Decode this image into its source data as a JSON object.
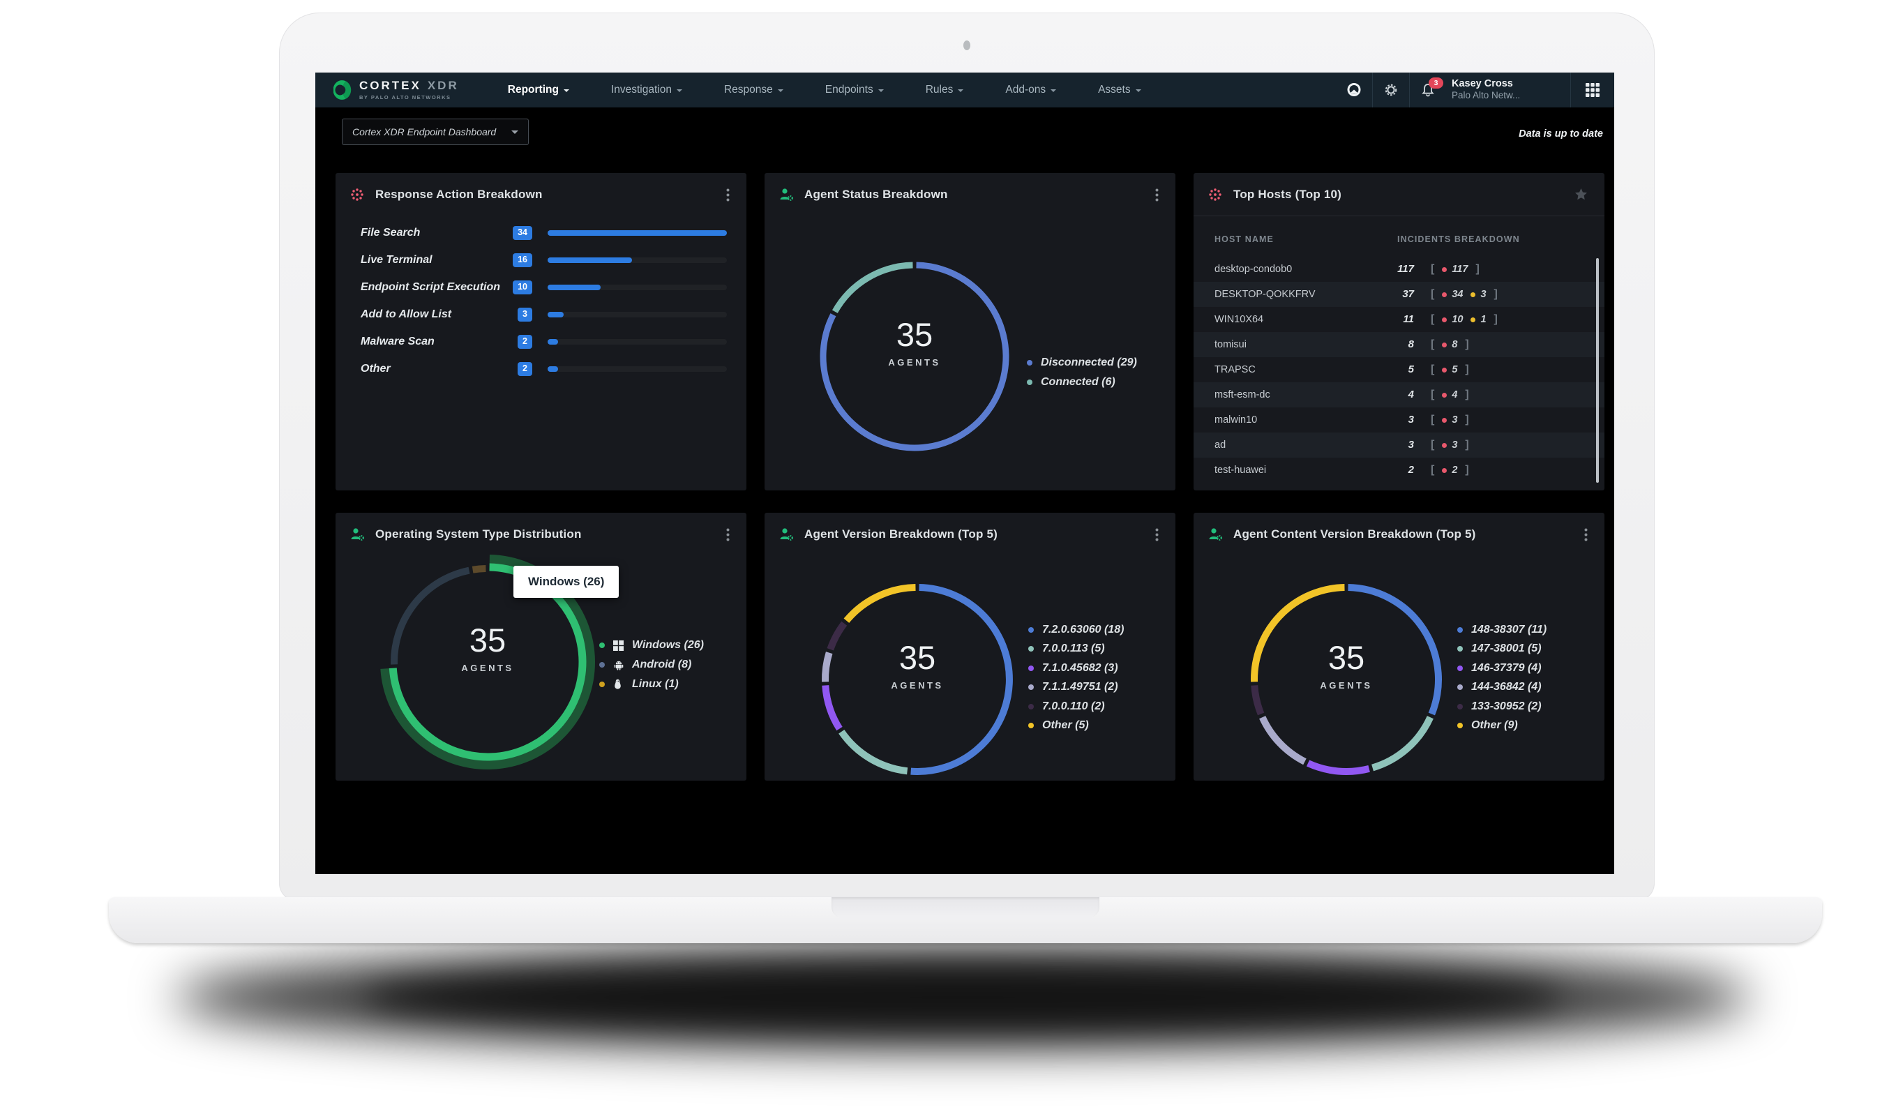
{
  "nav": {
    "brand": {
      "primary": "CORTEX",
      "secondary": "XDR",
      "tagline": "BY PALO ALTO NETWORKS"
    },
    "items": [
      {
        "label": "Reporting",
        "active": true
      },
      {
        "label": "Investigation",
        "active": false
      },
      {
        "label": "Response",
        "active": false
      },
      {
        "label": "Endpoints",
        "active": false
      },
      {
        "label": "Rules",
        "active": false
      },
      {
        "label": "Add-ons",
        "active": false
      },
      {
        "label": "Assets",
        "active": false
      }
    ],
    "notifications_badge": "3",
    "user": {
      "name": "Kasey Cross",
      "org": "Palo Alto Netw..."
    }
  },
  "toolbar": {
    "dashboard_selector": "Cortex XDR Endpoint Dashboard",
    "status_message": "Data is up to date"
  },
  "panels": [
    {
      "title": "Response Action Breakdown"
    },
    {
      "title": "Agent Status Breakdown"
    },
    {
      "title": "Top Hosts (Top 10)"
    },
    {
      "title": "Operating System Type Distribution"
    },
    {
      "title": "Agent Version Breakdown (Top 5)"
    },
    {
      "title": "Agent Content Version Breakdown (Top 5)"
    }
  ],
  "chart_data": [
    {
      "id": "response_action",
      "type": "bar",
      "title": "Response Action Breakdown",
      "categories": [
        "File Search",
        "Live Terminal",
        "Endpoint Script Execution",
        "Add to Allow List",
        "Malware Scan",
        "Other"
      ],
      "values": [
        34,
        16,
        10,
        3,
        2,
        2
      ],
      "bar_color": "#2d7ce2"
    },
    {
      "id": "agent_status",
      "type": "donut",
      "title": "Agent Status Breakdown",
      "center_value": "35",
      "center_label": "AGENTS",
      "segments": [
        {
          "label": "Disconnected (29)",
          "value": 29,
          "color": "#5b7cd0"
        },
        {
          "label": "Connected (6)",
          "value": 6,
          "color": "#7cbab1"
        }
      ]
    },
    {
      "id": "top_hosts",
      "type": "table",
      "title": "Top Hosts (Top 10)",
      "columns": [
        "HOST NAME",
        "INCIDENTS BREAKDOWN"
      ],
      "rows": [
        {
          "host": "desktop-condob0",
          "total": "117",
          "breakdown": [
            {
              "value": "117",
              "color": "#e8586c"
            }
          ]
        },
        {
          "host": "DESKTOP-QOKKFRV",
          "total": "37",
          "breakdown": [
            {
              "value": "34",
              "color": "#e8586c"
            },
            {
              "value": "3",
              "color": "#ecbe2d"
            }
          ]
        },
        {
          "host": "WIN10X64",
          "total": "11",
          "breakdown": [
            {
              "value": "10",
              "color": "#e8586c"
            },
            {
              "value": "1",
              "color": "#ecbe2d"
            }
          ]
        },
        {
          "host": "tomisui",
          "total": "8",
          "breakdown": [
            {
              "value": "8",
              "color": "#e8586c"
            }
          ]
        },
        {
          "host": "TRAPSC",
          "total": "5",
          "breakdown": [
            {
              "value": "5",
              "color": "#e8586c"
            }
          ]
        },
        {
          "host": "msft-esm-dc",
          "total": "4",
          "breakdown": [
            {
              "value": "4",
              "color": "#e8586c"
            }
          ]
        },
        {
          "host": "malwin10",
          "total": "3",
          "breakdown": [
            {
              "value": "3",
              "color": "#e8586c"
            }
          ]
        },
        {
          "host": "ad",
          "total": "3",
          "breakdown": [
            {
              "value": "3",
              "color": "#e8586c"
            }
          ]
        },
        {
          "host": "test-huawei",
          "total": "2",
          "breakdown": [
            {
              "value": "2",
              "color": "#e8586c"
            }
          ]
        }
      ]
    },
    {
      "id": "os_type",
      "type": "donut",
      "title": "Operating System Type Distribution",
      "center_value": "35",
      "center_label": "AGENTS",
      "tooltip": "Windows (26)",
      "segments": [
        {
          "label": "Windows (26)",
          "value": 26,
          "color": "#2fbf72",
          "dot": "#2fbf72",
          "os_icon": "windows",
          "highlighted": true
        },
        {
          "label": "Android (8)",
          "value": 8,
          "color": "#2d3a48",
          "dot": "#5e7195",
          "os_icon": "android"
        },
        {
          "label": "Linux (1)",
          "value": 1,
          "color": "#5d4a2b",
          "dot": "#cfa11f",
          "os_icon": "linux"
        }
      ]
    },
    {
      "id": "agent_version",
      "type": "donut",
      "title": "Agent Version Breakdown (Top 5)",
      "center_value": "35",
      "center_label": "AGENTS",
      "segments": [
        {
          "label": "7.2.0.63060 (18)",
          "value": 18,
          "color": "#4d7cd6"
        },
        {
          "label": "7.0.0.113 (5)",
          "value": 5,
          "color": "#8fc3ba"
        },
        {
          "label": "7.1.0.45682 (3)",
          "value": 3,
          "color": "#9158f2"
        },
        {
          "label": "7.1.1.49751 (2)",
          "value": 2,
          "color": "#a9aacb"
        },
        {
          "label": "7.0.0.110 (2)",
          "value": 2,
          "color": "#3c2b47"
        },
        {
          "label": "Other (5)",
          "value": 5,
          "color": "#f2c428"
        }
      ]
    },
    {
      "id": "agent_content_version",
      "type": "donut",
      "title": "Agent Content Version Breakdown (Top 5)",
      "center_value": "35",
      "center_label": "AGENTS",
      "segments": [
        {
          "label": "148-38307 (11)",
          "value": 11,
          "color": "#4d7cd6"
        },
        {
          "label": "147-38001 (5)",
          "value": 5,
          "color": "#8fc3ba"
        },
        {
          "label": "146-37379 (4)",
          "value": 4,
          "color": "#9158f2"
        },
        {
          "label": "144-36842 (4)",
          "value": 4,
          "color": "#a9aacb"
        },
        {
          "label": "133-30952 (2)",
          "value": 2,
          "color": "#3c2b47"
        },
        {
          "label": "Other (9)",
          "value": 9,
          "color": "#f2c428"
        }
      ]
    }
  ]
}
